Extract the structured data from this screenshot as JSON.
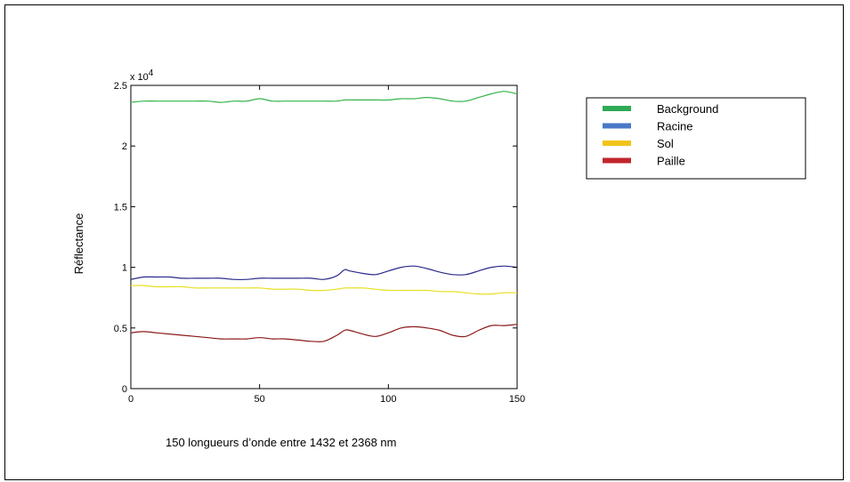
{
  "chart_data": {
    "type": "line",
    "title": "",
    "xlabel": "150 longueurs d’onde entre 1432 et 2368 nm",
    "ylabel": "Réflectance",
    "y_multiplier": "x 10",
    "y_multiplier_exponent": "4",
    "xlim": [
      0,
      150
    ],
    "ylim": [
      0,
      2.5
    ],
    "x_ticks": [
      0,
      50,
      100,
      150
    ],
    "x_tick_labels": [
      "0",
      "50",
      "100",
      "150"
    ],
    "y_ticks": [
      0,
      0.5,
      1,
      1.5,
      2,
      2.5
    ],
    "y_tick_labels": [
      "0",
      "0.5",
      "1",
      "1.5",
      "2",
      "2.5"
    ],
    "grid": false,
    "legend_position": "right",
    "x": [
      0,
      5,
      10,
      15,
      20,
      25,
      30,
      35,
      40,
      45,
      50,
      55,
      60,
      65,
      70,
      75,
      80,
      83,
      85,
      90,
      95,
      100,
      105,
      110,
      115,
      120,
      125,
      130,
      135,
      140,
      145,
      150
    ],
    "series": [
      {
        "name": "Background",
        "color": "#33b34a",
        "values": [
          2.36,
          2.37,
          2.37,
          2.37,
          2.37,
          2.37,
          2.37,
          2.36,
          2.37,
          2.37,
          2.39,
          2.37,
          2.37,
          2.37,
          2.37,
          2.37,
          2.37,
          2.38,
          2.38,
          2.38,
          2.38,
          2.38,
          2.39,
          2.39,
          2.4,
          2.39,
          2.37,
          2.37,
          2.4,
          2.43,
          2.45,
          2.43
        ]
      },
      {
        "name": "Racine",
        "color": "#2a2a8c",
        "values": [
          0.9,
          0.92,
          0.92,
          0.92,
          0.91,
          0.91,
          0.91,
          0.91,
          0.9,
          0.9,
          0.91,
          0.91,
          0.91,
          0.91,
          0.91,
          0.9,
          0.93,
          0.98,
          0.97,
          0.95,
          0.94,
          0.97,
          1.0,
          1.01,
          0.99,
          0.96,
          0.94,
          0.94,
          0.97,
          1.0,
          1.01,
          1.0
        ]
      },
      {
        "name": "Sol",
        "color": "#e8e020",
        "values": [
          0.85,
          0.85,
          0.84,
          0.84,
          0.84,
          0.83,
          0.83,
          0.83,
          0.83,
          0.83,
          0.83,
          0.82,
          0.82,
          0.82,
          0.81,
          0.81,
          0.82,
          0.83,
          0.83,
          0.83,
          0.82,
          0.81,
          0.81,
          0.81,
          0.81,
          0.8,
          0.8,
          0.79,
          0.78,
          0.78,
          0.79,
          0.79
        ]
      },
      {
        "name": "Paille",
        "color": "#8b1a1a",
        "values": [
          0.46,
          0.47,
          0.46,
          0.45,
          0.44,
          0.43,
          0.42,
          0.41,
          0.41,
          0.41,
          0.42,
          0.41,
          0.41,
          0.4,
          0.39,
          0.39,
          0.44,
          0.48,
          0.48,
          0.45,
          0.43,
          0.46,
          0.5,
          0.51,
          0.5,
          0.48,
          0.44,
          0.43,
          0.48,
          0.52,
          0.52,
          0.53
        ]
      }
    ]
  },
  "legend_swatch_colors": {
    "Background": "#2eaa55",
    "Racine": "#4a78c8",
    "Sol": "#f2c418",
    "Paille": "#c0262c"
  }
}
